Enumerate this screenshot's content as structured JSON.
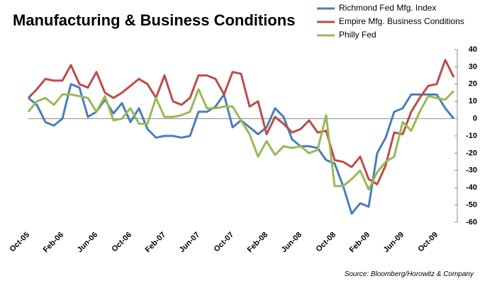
{
  "chart_data": {
    "type": "line",
    "title": "Manufacturing & Business Conditions",
    "source": "Source: Bloomberg/Horowitz & Company",
    "categories": [
      "Oct-05",
      null,
      null,
      null,
      "Feb-06",
      null,
      null,
      null,
      "Jun-06",
      null,
      null,
      null,
      "Oct-06",
      null,
      null,
      null,
      "Feb-07",
      null,
      null,
      null,
      "Jun-07",
      null,
      null,
      null,
      "Oct-07",
      null,
      null,
      null,
      "Feb-08",
      null,
      null,
      null,
      "Jun-08",
      null,
      null,
      null,
      "Oct-08",
      null,
      null,
      null,
      "Feb-09",
      null,
      null,
      null,
      "Jun-09",
      null,
      null,
      null,
      "Oct-09",
      null,
      null
    ],
    "series": [
      {
        "name": "Richmond Fed Mfg. Index",
        "color": "#4a7ebb",
        "values": [
          12,
          8,
          -2,
          -4,
          0,
          20,
          18,
          1,
          4,
          11,
          3,
          9,
          -2,
          6,
          -6,
          -11,
          -10,
          -10,
          -11,
          -10,
          4,
          4,
          7,
          14,
          -5,
          -1,
          -5,
          -9,
          -5,
          6,
          1,
          -12,
          -16,
          -16,
          -17,
          -24,
          -26,
          -39,
          -55,
          -49,
          -51,
          -20,
          -11,
          4,
          6,
          14,
          14,
          14,
          14,
          6,
          0
        ]
      },
      {
        "name": "Empire Mfg. Business Conditions",
        "color": "#be4b48",
        "values": [
          12,
          17,
          23,
          22,
          22,
          31,
          20,
          18,
          27,
          15,
          12,
          15,
          19,
          23,
          20,
          12,
          25,
          10,
          8,
          12,
          25,
          25,
          23,
          14,
          27,
          26,
          7,
          10,
          -9,
          1,
          -3,
          -8,
          -6,
          -1,
          -8,
          -7,
          -24,
          -25,
          -28,
          -22,
          -35,
          -38,
          -27,
          -8,
          -9,
          4,
          12,
          19,
          20,
          34,
          24
        ]
      },
      {
        "name": "Philly Fed",
        "color": "#98b954",
        "values": [
          4,
          10,
          12,
          8,
          14,
          14,
          13,
          12,
          4,
          13,
          -1,
          0,
          6,
          -3,
          -3,
          12,
          1,
          1,
          2,
          4,
          17,
          6,
          6,
          7,
          7,
          -1,
          -9,
          -22,
          -13,
          -21,
          -16,
          -17,
          -16,
          -20,
          -18,
          2,
          -39,
          -39,
          -35,
          -30,
          -41,
          -31,
          -25,
          -22,
          -2,
          -7,
          4,
          13,
          12,
          11,
          16
        ]
      }
    ],
    "ylim": [
      -60,
      40
    ],
    "yticks": [
      -60,
      -50,
      -40,
      -30,
      -20,
      -10,
      0,
      10,
      20,
      30,
      40
    ],
    "grid": false
  }
}
